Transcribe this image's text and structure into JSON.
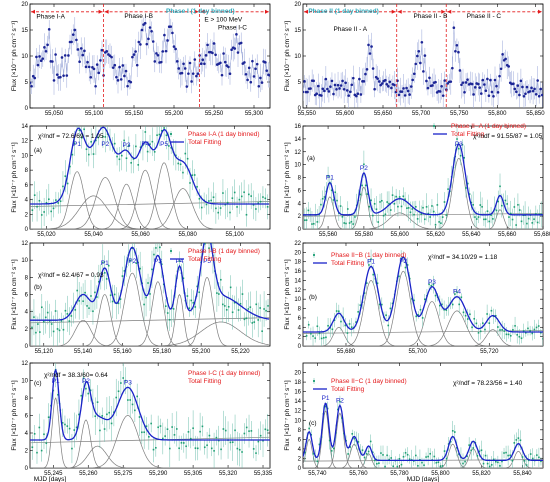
{
  "figure": {
    "ylabel_flux": "Flux [×10⁻⁷ ph cm⁻² s⁻¹]",
    "xlabel_mjd": "MJD [days]"
  },
  "chart_data": [
    {
      "id": "top-left",
      "type": "scatter",
      "xlim": [
        55020,
        55320
      ],
      "ylim": [
        0,
        20
      ],
      "xticks": [
        55050,
        55100,
        55150,
        55200,
        55250,
        55300
      ],
      "yticks": [
        0,
        5,
        10,
        15,
        20
      ],
      "xlabel": "",
      "ylabel": "Flux [×10⁻⁷ ph cm⁻² s⁻¹]",
      "phase_lines": [
        55112,
        55232
      ],
      "phase_labels": [
        {
          "text": "Phase I-A",
          "x": 55028,
          "y": 17.2,
          "color": "#000"
        },
        {
          "text": "Phase I-B",
          "x": 55138,
          "y": 17.3,
          "color": "#000"
        },
        {
          "text": "Phase I (1 day binned)",
          "x": 55190,
          "y": 18.3,
          "color": "#2aa6b8"
        },
        {
          "text": "E > 100 MeV",
          "x": 55238,
          "y": 16.6,
          "color": "#000"
        },
        {
          "text": "Phase I-C",
          "x": 55255,
          "y": 15.1,
          "color": "#000"
        }
      ],
      "arrows": [
        [
          55020,
          55112
        ],
        [
          55112,
          55232
        ],
        [
          55232,
          55320
        ]
      ],
      "series": [
        {
          "shape": "noisy",
          "base": 6.2,
          "amp": 3.5,
          "step": 2,
          "flares": [
            [
              55040,
              8,
              10
            ],
            [
              55075,
              7,
              12
            ],
            [
              55120,
              6,
              10
            ],
            [
              55165,
              9,
              14
            ],
            [
              55195,
              7,
              10
            ],
            [
              55245,
              6,
              12
            ],
            [
              55280,
              5,
              15
            ]
          ],
          "seed": 11
        }
      ]
    },
    {
      "id": "top-right",
      "type": "scatter",
      "xlim": [
        55545,
        55860
      ],
      "ylim": [
        0,
        20
      ],
      "xticks": [
        55550,
        55600,
        55650,
        55700,
        55750,
        55800,
        55850
      ],
      "yticks": [
        0,
        5,
        10,
        15,
        20
      ],
      "xlabel": "",
      "ylabel": "Flux [×10⁻⁷ ph cm⁻² s⁻¹]",
      "phase_lines": [
        55668,
        55733
      ],
      "phase_labels": [
        {
          "text": "Phase II (1 day binned)",
          "x": 55552,
          "y": 18.3,
          "color": "#2aa6b8"
        },
        {
          "text": "Phase II - A",
          "x": 55585,
          "y": 14.8,
          "color": "#000"
        },
        {
          "text": "Phase II - B",
          "x": 55690,
          "y": 17.3,
          "color": "#000"
        },
        {
          "text": "Phase II - C",
          "x": 55760,
          "y": 17.3,
          "color": "#000"
        }
      ],
      "arrows": [
        [
          55545,
          55668
        ],
        [
          55668,
          55733
        ],
        [
          55733,
          55860
        ]
      ],
      "series": [
        {
          "shape": "noisy",
          "base": 4.0,
          "amp": 2.2,
          "step": 2,
          "flares": [
            [
              55632,
              10,
              5
            ],
            [
              55700,
              9,
              8
            ],
            [
              55745,
              12,
              5
            ],
            [
              55810,
              6,
              6
            ]
          ],
          "seed": 23
        }
      ]
    },
    {
      "id": "I-A",
      "type": "line",
      "xlim": [
        55013,
        55115
      ],
      "ylim": [
        0,
        14
      ],
      "xticks": [
        55020,
        55040,
        55060,
        55080,
        55100
      ],
      "yticks": [
        0,
        2,
        4,
        6,
        8,
        10,
        12,
        14
      ],
      "xlabel": "",
      "ylabel": "Flux [×10⁻⁷ ph cm⁻² s⁻¹]",
      "title": "Phase I-A (1 day binned)",
      "fit_label": "Total Fitting",
      "stat": "χ²/ndf = 72.6/69 = 1.05",
      "panel": "(a)",
      "baseline": 3.4,
      "peaks": [
        {
          "name": "P1",
          "x0": 55033,
          "a": 7.8,
          "w": 3.0
        },
        {
          "name": "",
          "x0": 55040,
          "a": 4.5,
          "w": 6.0
        },
        {
          "name": "P2",
          "x0": 55045,
          "a": 7.0,
          "w": 4.0
        },
        {
          "name": "P3",
          "x0": 55054,
          "a": 6.1,
          "w": 3.0
        },
        {
          "name": "P4",
          "x0": 55062,
          "a": 8.0,
          "w": 3.2
        },
        {
          "name": "P5",
          "x0": 55070,
          "a": 9.0,
          "w": 3.0
        },
        {
          "name": "",
          "x0": 55078,
          "a": 5.5,
          "w": 4.0
        }
      ],
      "seed": 3
    },
    {
      "id": "II-A",
      "type": "line",
      "xlim": [
        55546,
        55680
      ],
      "ylim": [
        0,
        16
      ],
      "xticks": [
        55560,
        55580,
        55600,
        55620,
        55640,
        55660,
        55680
      ],
      "yticks": [
        0,
        2,
        4,
        6,
        8,
        10,
        12,
        14,
        16
      ],
      "xlabel": "",
      "ylabel": "Flux [×10⁻⁷ ph cm⁻² s⁻¹]",
      "title": "Phase II−A (1 day binned)",
      "fit_label": "Total Fitting",
      "stat": "χ²/ndf = 91.55/87 = 1.05",
      "panel": "(a)",
      "baseline": 2.2,
      "peaks": [
        {
          "name": "P1",
          "x0": 55561,
          "a": 5.0,
          "w": 2.2
        },
        {
          "name": "P2",
          "x0": 55580,
          "a": 6.5,
          "w": 2.2
        },
        {
          "name": "P3",
          "x0": 55633,
          "a": 11.0,
          "w": 3.5
        },
        {
          "name": "",
          "x0": 55656,
          "a": 3.0,
          "w": 2.0
        },
        {
          "name": "",
          "x0": 55600,
          "a": 2.5,
          "w": 6.0
        }
      ],
      "seed": 5
    },
    {
      "id": "I-B",
      "type": "line",
      "xlim": [
        55113,
        55235
      ],
      "ylim": [
        0,
        12
      ],
      "xticks": [
        55120,
        55140,
        55160,
        55180,
        55200,
        55220
      ],
      "yticks": [
        0,
        2,
        4,
        6,
        8,
        10,
        12
      ],
      "xlabel": "",
      "ylabel": "Flux [×10⁻⁷ ph cm⁻² s⁻¹]",
      "title": "Phase I-B (1 day binned)",
      "fit_label": "Total Fitting",
      "stat": "χ²/ndf = 62.4/67 = 0.93",
      "panel": "(b)",
      "baseline": 3.0,
      "peaks": [
        {
          "name": "P1",
          "x0": 55151,
          "a": 6.0,
          "w": 3.0
        },
        {
          "name": "",
          "x0": 55140,
          "a": 3.0,
          "w": 4.0
        },
        {
          "name": "P2",
          "x0": 55165,
          "a": 8.5,
          "w": 4.0
        },
        {
          "name": "P3",
          "x0": 55178,
          "a": 7.5,
          "w": 3.0
        },
        {
          "name": "P4",
          "x0": 55189,
          "a": 6.0,
          "w": 2.0
        },
        {
          "name": "P5",
          "x0": 55203,
          "a": 8.0,
          "w": 3.0
        },
        {
          "name": "",
          "x0": 55210,
          "a": 2.8,
          "w": 10.0
        }
      ],
      "seed": 7
    },
    {
      "id": "II-B",
      "type": "line",
      "xlim": [
        55668,
        55735
      ],
      "ylim": [
        0,
        22
      ],
      "xticks": [
        55680,
        55700,
        55720
      ],
      "yticks": [
        0,
        2,
        4,
        6,
        8,
        10,
        12,
        14,
        16,
        18,
        20,
        22
      ],
      "xlabel": "",
      "ylabel": "Flux [×10⁻⁷ ph cm⁻² s⁻¹]",
      "title": "Phase II−B (1 day binned)",
      "fit_label": "Total Fitting",
      "stat": "χ²/ndf = 34.10/29 = 1.18",
      "panel": "(b)",
      "baseline": 3.0,
      "peaks": [
        {
          "name": "",
          "x0": 55678,
          "a": 4.0,
          "w": 1.5
        },
        {
          "name": "P1",
          "x0": 55687,
          "a": 14.0,
          "w": 2.0
        },
        {
          "name": "P2",
          "x0": 55696,
          "a": 16.0,
          "w": 2.0
        },
        {
          "name": "P3",
          "x0": 55704,
          "a": 9.5,
          "w": 2.0
        },
        {
          "name": "P4",
          "x0": 55711,
          "a": 7.5,
          "w": 2.5
        },
        {
          "name": "",
          "x0": 55721,
          "a": 3.5,
          "w": 1.8
        }
      ],
      "seed": 9
    },
    {
      "id": "I-C",
      "type": "line",
      "xlim": [
        55235,
        55338
      ],
      "ylim": [
        0,
        12
      ],
      "xticks": [
        55245,
        55260,
        55275,
        55290,
        55305,
        55320,
        55335
      ],
      "yticks": [
        0,
        2,
        4,
        6,
        8,
        10,
        12
      ],
      "xlabel": "MJD [days]",
      "ylabel": "Flux [×10⁻⁷ ph cm⁻² s⁻¹]",
      "title": "Phase I-C (1 day binned)",
      "fit_label": "Total Fitting",
      "stat": "χ²/ndf = 38.3/60= 0.64",
      "panel": "(c)",
      "baseline": 3.2,
      "peaks": [
        {
          "name": "P1",
          "x0": 55246,
          "a": 8.0,
          "w": 1.5
        },
        {
          "name": "P2",
          "x0": 55259,
          "a": 5.5,
          "w": 2.0
        },
        {
          "name": "",
          "x0": 55264,
          "a": 2.5,
          "w": 4.0
        },
        {
          "name": "P3",
          "x0": 55277,
          "a": 6.0,
          "w": 4.5
        }
      ],
      "seed": 13
    },
    {
      "id": "II-C",
      "type": "line",
      "xlim": [
        55733,
        55850
      ],
      "ylim": [
        0,
        22
      ],
      "xticks": [
        55740,
        55760,
        55780,
        55800,
        55820,
        55840
      ],
      "yticks": [
        0,
        2,
        4,
        6,
        8,
        10,
        12,
        14,
        16,
        18,
        20
      ],
      "xlabel": "MJD [days]",
      "ylabel": "Flux [×10⁻⁷ ph cm⁻² s⁻¹]",
      "title": "Phase II−C (1 day binned)",
      "fit_label": "Total Fitting",
      "stat": "χ²/ndf = 78.23/56 = 1.40",
      "panel": "(c)",
      "baseline": 1.6,
      "peaks": [
        {
          "name": "",
          "x0": 55736,
          "a": 6.0,
          "w": 1.5
        },
        {
          "name": "P1",
          "x0": 55744,
          "a": 12.0,
          "w": 1.6
        },
        {
          "name": "P2",
          "x0": 55751,
          "a": 11.5,
          "w": 1.8
        },
        {
          "name": "",
          "x0": 55758,
          "a": 5.0,
          "w": 2.0
        },
        {
          "name": "",
          "x0": 55765,
          "a": 3.0,
          "w": 1.5
        },
        {
          "name": "",
          "x0": 55806,
          "a": 5.0,
          "w": 2.0
        },
        {
          "name": "",
          "x0": 55816,
          "a": 4.0,
          "w": 2.0
        },
        {
          "name": "",
          "x0": 55838,
          "a": 3.5,
          "w": 2.0
        }
      ],
      "seed": 17
    }
  ]
}
